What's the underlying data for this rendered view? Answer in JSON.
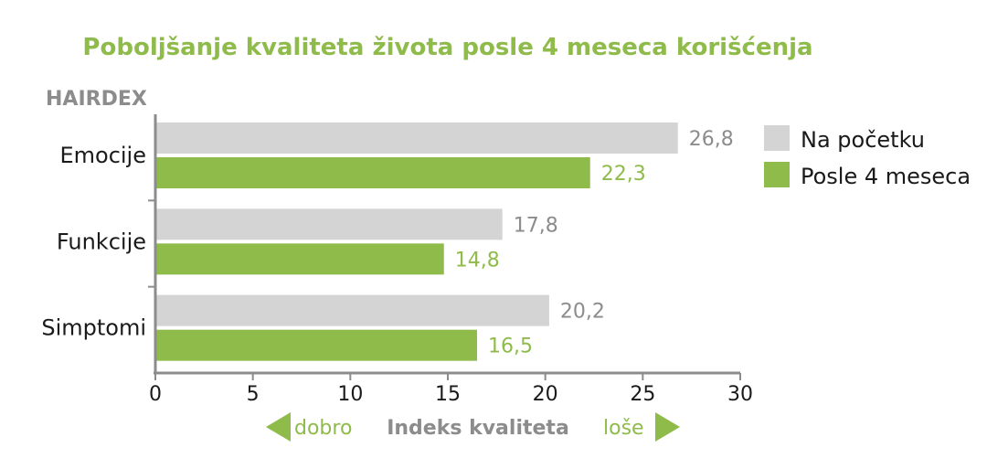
{
  "colors": {
    "before": "#d4d4d4",
    "after": "#8fbb4b",
    "before_label": "#8c8c8c",
    "after_label": "#8fbb4b",
    "title": "#8fbb4b",
    "axis": "#8c8c8c",
    "muted_text": "#8c8c8c"
  },
  "chart_data": {
    "type": "bar",
    "orientation": "horizontal",
    "title": "Poboljšanje kvaliteta života posle 4 meseca korišćenja",
    "ylabel": "HAIRDEX",
    "xlabel": "Indeks kvaliteta",
    "xlim": [
      0,
      30
    ],
    "xticks": [
      "0",
      "5",
      "10",
      "15",
      "20",
      "25",
      "30"
    ],
    "categories": [
      "Emocije",
      "Funkcije",
      "Simptomi"
    ],
    "series": [
      {
        "name": "Na početku",
        "values": [
          26.8,
          17.8,
          20.2
        ],
        "labels": [
          "26,8",
          "17,8",
          "20,2"
        ]
      },
      {
        "name": "Posle 4 meseca",
        "values": [
          22.3,
          14.8,
          16.5
        ],
        "labels": [
          "22,3",
          "14,8",
          "16,5"
        ]
      }
    ],
    "legend_position": "right",
    "grid": false,
    "direction_labels": {
      "left": "dobro",
      "right": "loše"
    }
  }
}
